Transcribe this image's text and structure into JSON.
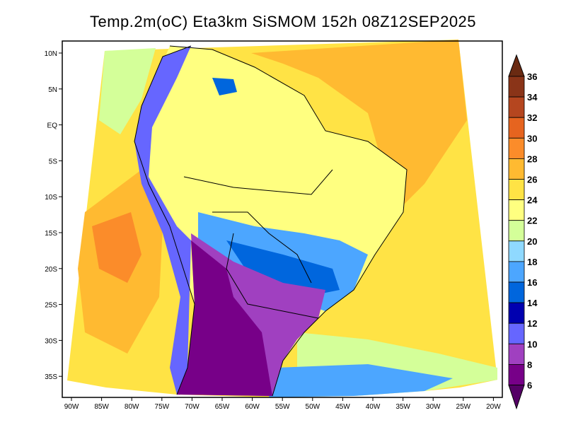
{
  "title": "Temp.2m(oC) Eta3km SiSMOM 152h 08Z12SEP2025",
  "lon_ticks": [
    "90W",
    "85W",
    "80W",
    "75W",
    "70W",
    "65W",
    "60W",
    "55W",
    "50W",
    "45W",
    "40W",
    "35W",
    "30W",
    "25W",
    "20W"
  ],
  "lat_ticks": [
    "10N",
    "5N",
    "EQ",
    "5S",
    "10S",
    "15S",
    "20S",
    "25S",
    "30S",
    "35S"
  ],
  "colorbar": {
    "labels": [
      "36",
      "34",
      "32",
      "30",
      "28",
      "26",
      "24",
      "22",
      "20",
      "18",
      "16",
      "14",
      "12",
      "10",
      "8",
      "6"
    ],
    "colors": [
      "#6a2a12",
      "#8a3418",
      "#b5461f",
      "#e6641f",
      "#fb8c2a",
      "#ffba31",
      "#ffe345",
      "#ffff80",
      "#d4ff99",
      "#8fd9ff",
      "#4ca6ff",
      "#0066dd",
      "#0000b0",
      "#6666ff",
      "#a040c0",
      "#770088",
      "#550066"
    ]
  }
}
